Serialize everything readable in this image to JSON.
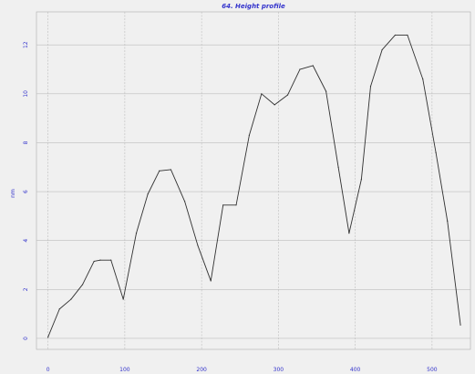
{
  "chart_data": {
    "type": "line",
    "title": "64. Height profile",
    "xlabel": "",
    "ylabel": "nm",
    "xlim": [
      -15,
      550
    ],
    "ylim": [
      -0.45,
      13.35
    ],
    "x_ticks": [
      0,
      100,
      200,
      300,
      400,
      500
    ],
    "y_ticks": [
      0,
      2,
      4,
      6,
      8,
      10,
      12
    ],
    "grid": true,
    "colors": {
      "background": "#f0f0f0",
      "grid": "#bdbdbd",
      "line": "#303030",
      "axis_text": "#3333cc"
    },
    "series": [
      {
        "x": [
          0,
          15,
          30,
          45,
          60,
          68,
          82,
          98,
          115,
          130,
          145,
          160,
          178,
          195,
          212,
          228,
          245,
          262,
          278,
          295,
          312,
          328,
          345,
          362,
          378,
          392,
          408,
          420,
          435,
          452,
          468,
          488,
          505,
          520,
          537
        ],
        "values": [
          0.05,
          1.2,
          1.6,
          2.2,
          3.15,
          3.2,
          3.2,
          1.6,
          4.3,
          5.9,
          6.85,
          6.9,
          5.6,
          3.8,
          2.35,
          5.45,
          5.45,
          8.3,
          10.0,
          9.55,
          9.95,
          11.0,
          11.15,
          10.1,
          7.0,
          4.3,
          6.5,
          10.3,
          11.8,
          12.4,
          12.4,
          10.6,
          7.6,
          4.8,
          0.55
        ]
      }
    ]
  }
}
